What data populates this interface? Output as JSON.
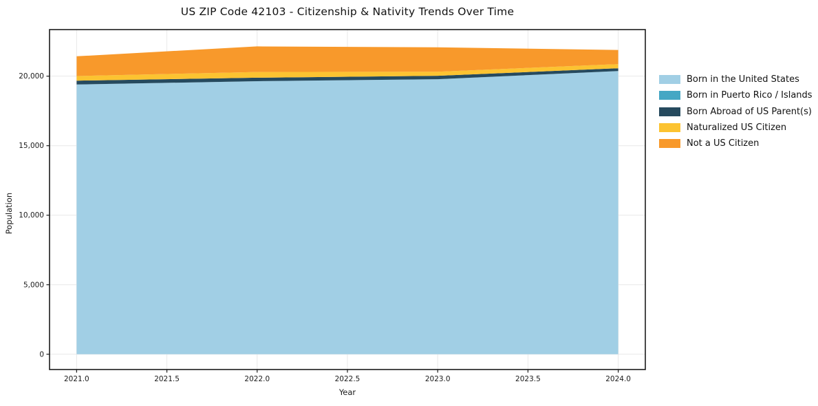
{
  "chart_data": {
    "type": "area",
    "stacked": true,
    "title": "US ZIP Code 42103 - Citizenship & Nativity Trends Over Time",
    "xlabel": "Year",
    "ylabel": "Population",
    "x": [
      2021,
      2022,
      2023,
      2024
    ],
    "series": [
      {
        "name": "Born in the United States",
        "color": "#a1cfe5",
        "values": [
          19400,
          19640,
          19780,
          20370
        ]
      },
      {
        "name": "Born in Puerto Rico / Islands",
        "color": "#45a7c4",
        "values": [
          0,
          0,
          0,
          0
        ]
      },
      {
        "name": "Born Abroad of US Parent(s)",
        "color": "#264a5e",
        "values": [
          280,
          250,
          250,
          200
        ]
      },
      {
        "name": "Naturalized US Citizen",
        "color": "#fcc331",
        "values": [
          330,
          410,
          290,
          295
        ]
      },
      {
        "name": "Not a US Citizen",
        "color": "#f8992b",
        "values": [
          1420,
          1840,
          1755,
          1020
        ]
      }
    ],
    "xlim": [
      2020.85,
      2024.15
    ],
    "ylim": [
      -1100,
      23350
    ],
    "xticks": [
      2021.0,
      2021.5,
      2022.0,
      2022.5,
      2023.0,
      2023.5,
      2024.0
    ],
    "xtick_labels": [
      "2021.0",
      "2021.5",
      "2022.0",
      "2022.5",
      "2023.0",
      "2023.5",
      "2024.0"
    ],
    "yticks": [
      0,
      5000,
      10000,
      15000,
      20000
    ],
    "ytick_labels": [
      "0",
      "5,000",
      "10,000",
      "15,000",
      "20,000"
    ],
    "grid": true,
    "grid_color": "#e8e8e8",
    "spine_color": "#1a1a1a",
    "tick_label_color": "#1a1a1a",
    "legend_position": "right-outside"
  }
}
